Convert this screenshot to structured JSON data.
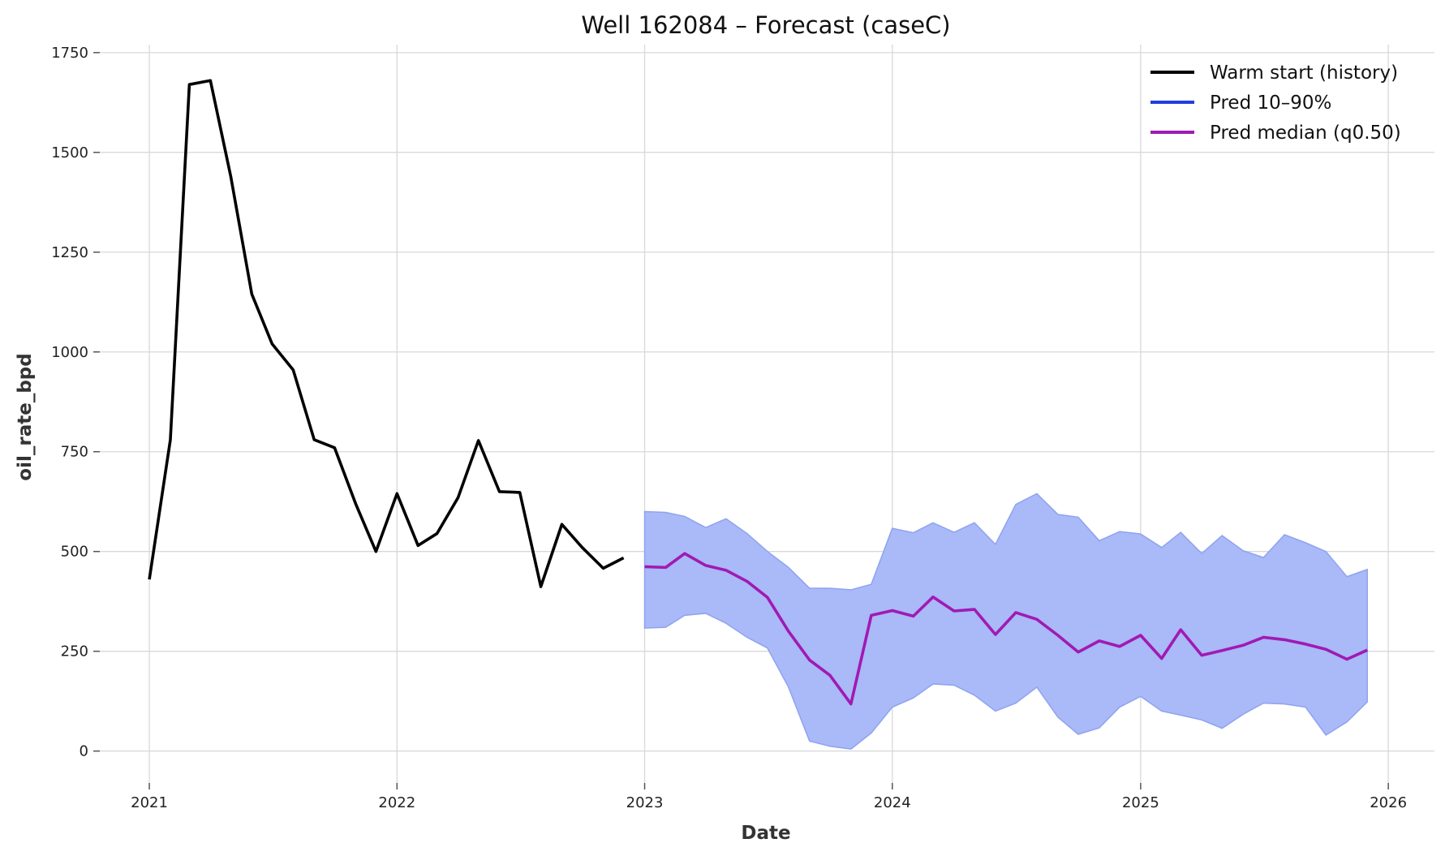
{
  "chart_data": {
    "type": "line",
    "title": "Well 162084 – Forecast (caseC)",
    "xlabel": "Date",
    "ylabel": "oil_rate_bpd",
    "xlim": [
      "2020-10-20",
      "2026-03-10"
    ],
    "ylim": [
      -80,
      1770
    ],
    "x_ticks": [
      "2021",
      "2022",
      "2023",
      "2024",
      "2025",
      "2026"
    ],
    "y_ticks": [
      0,
      250,
      500,
      750,
      1000,
      1250,
      1500,
      1750
    ],
    "grid": true,
    "legend_position": "top-right",
    "colors": {
      "history": "#000000",
      "band_fill": "#aab9f7",
      "band_edge": "#8ea3f0",
      "band_legend": "#1f3fe0",
      "median": "#a01ab4"
    },
    "legend": [
      {
        "key": "history",
        "label": "Warm start (history)"
      },
      {
        "key": "band",
        "label": "Pred 10–90%"
      },
      {
        "key": "median",
        "label": "Pred median (q0.50)"
      }
    ],
    "history": {
      "x": [
        "2021-01",
        "2021-02",
        "2021-03",
        "2021-04",
        "2021-05",
        "2021-06",
        "2021-07",
        "2021-08",
        "2021-09",
        "2021-10",
        "2021-11",
        "2021-12",
        "2022-01",
        "2022-02",
        "2022-03",
        "2022-04",
        "2022-05",
        "2022-06",
        "2022-07",
        "2022-08",
        "2022-09",
        "2022-10",
        "2022-11",
        "2022-12"
      ],
      "y": [
        430,
        780,
        1670,
        1680,
        1440,
        1145,
        1020,
        955,
        780,
        760,
        620,
        500,
        645,
        515,
        545,
        635,
        778,
        650,
        648,
        412,
        568,
        510,
        458,
        484
      ]
    },
    "forecast": {
      "x": [
        "2023-01",
        "2023-02",
        "2023-03",
        "2023-04",
        "2023-05",
        "2023-06",
        "2023-07",
        "2023-08",
        "2023-09",
        "2023-10",
        "2023-11",
        "2023-12",
        "2024-01",
        "2024-02",
        "2024-03",
        "2024-04",
        "2024-05",
        "2024-06",
        "2024-07",
        "2024-08",
        "2024-09",
        "2024-10",
        "2024-11",
        "2024-12",
        "2025-01",
        "2025-02",
        "2025-03",
        "2025-04",
        "2025-05",
        "2025-06",
        "2025-07",
        "2025-08",
        "2025-09",
        "2025-10",
        "2025-11",
        "2025-12"
      ],
      "median": [
        462,
        460,
        495,
        465,
        453,
        425,
        385,
        300,
        228,
        190,
        118,
        340,
        352,
        338,
        386,
        351,
        355,
        292,
        347,
        330,
        290,
        248,
        276,
        262,
        290,
        232,
        304,
        240,
        252,
        265,
        285,
        279,
        268,
        255,
        230,
        253
      ],
      "q10": [
        308,
        310,
        340,
        345,
        320,
        285,
        258,
        160,
        25,
        12,
        5,
        45,
        110,
        133,
        168,
        165,
        140,
        100,
        120,
        160,
        85,
        42,
        58,
        110,
        137,
        100,
        90,
        78,
        57,
        92,
        120,
        118,
        110,
        40,
        73,
        123
      ],
      "q90": [
        600,
        598,
        588,
        560,
        582,
        545,
        500,
        460,
        408,
        408,
        404,
        418,
        558,
        547,
        572,
        548,
        572,
        518,
        618,
        645,
        593,
        586,
        527,
        550,
        544,
        510,
        548,
        495,
        540,
        502,
        485,
        542,
        522,
        500,
        437,
        455
      ]
    }
  }
}
